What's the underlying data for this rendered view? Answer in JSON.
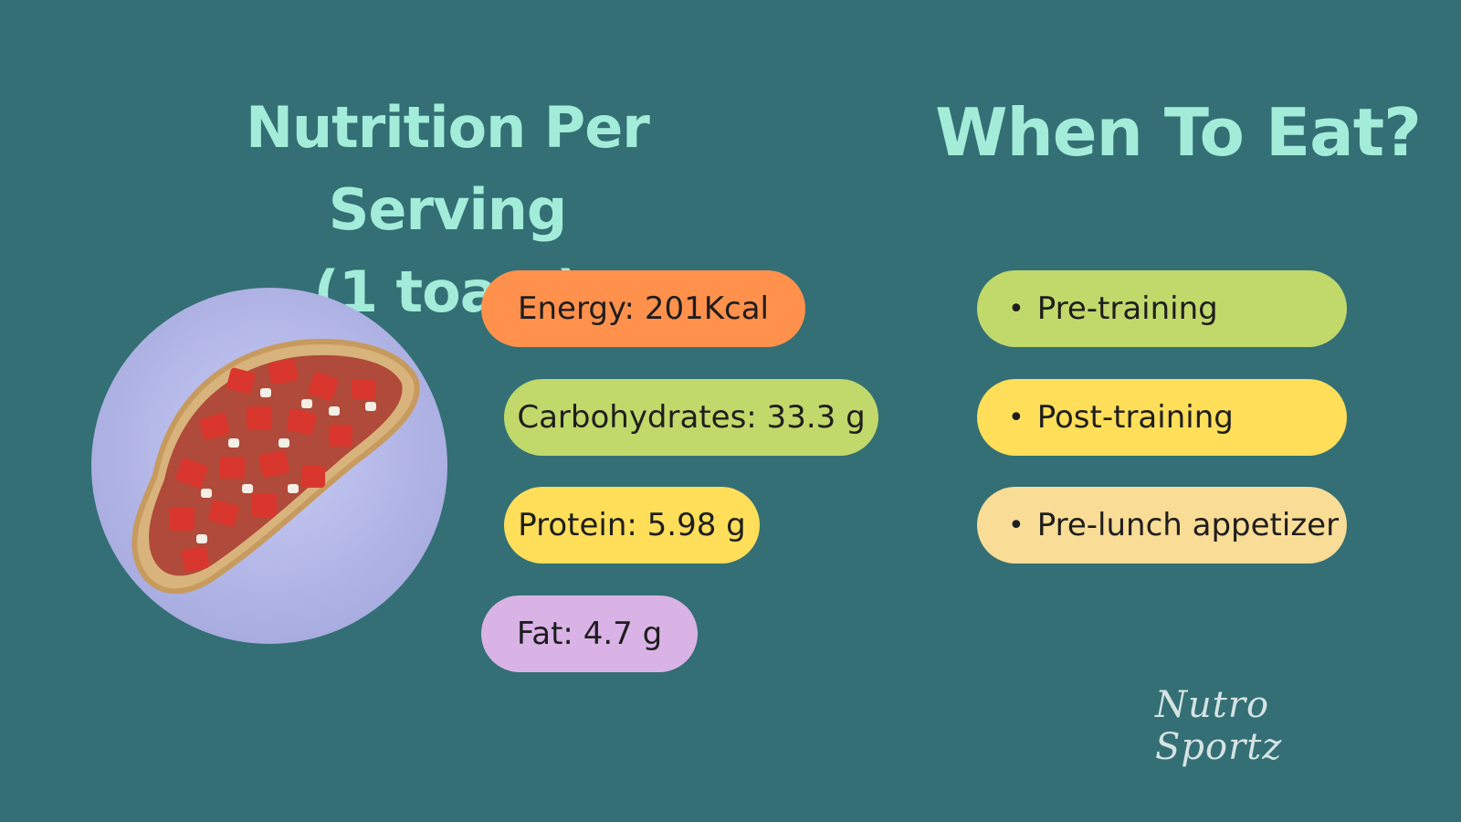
{
  "nutrition": {
    "title_line1": "Nutrition Per Serving",
    "title_line2": "(1 toast)",
    "items": [
      {
        "label": "Energy: 201Kcal",
        "color": "#ff914d"
      },
      {
        "label": "Carbohydrates: 33.3 g",
        "color": "#c1d96b"
      },
      {
        "label": "Protein: 5.98 g",
        "color": "#ffde59"
      },
      {
        "label": "Fat: 4.7 g",
        "color": "#d9b3e6"
      }
    ]
  },
  "when": {
    "title": "When To Eat?",
    "items": [
      {
        "label": "Pre-training",
        "color": "#c1d96b"
      },
      {
        "label": "Post-training",
        "color": "#ffde59"
      },
      {
        "label": "Pre-lunch appetizer",
        "color": "#f9dc96"
      }
    ]
  },
  "brand": {
    "logo": "Nutro Sportz"
  },
  "colors": {
    "background": "#336f75",
    "title": "#a3ecd9",
    "plate": "#b8bcef"
  }
}
